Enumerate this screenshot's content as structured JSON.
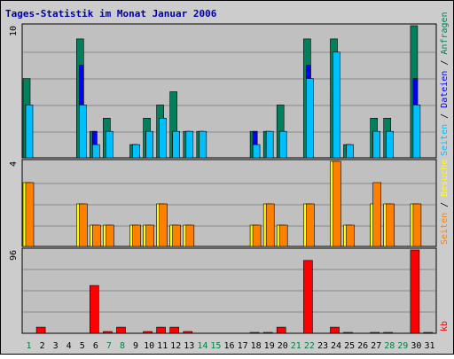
{
  "title": "Tages-Statistik im Monat Januar 2006",
  "colors": {
    "frame_bg": "#cccccc",
    "plot_bg": "#c0c0c0",
    "border": "#000000",
    "gridline": "#8a8a8a",
    "title": "#0000aa",
    "weekday_label": "#000000",
    "weekend_label": "#008040",
    "anfragen": "#00805c",
    "dateien": "#0000ff",
    "seiten_top": "#00bfff",
    "seiten_mid": "#ff8000",
    "besuche": "#ffff00",
    "kb": "#ff0000",
    "slash": "#000000"
  },
  "chart_data": [
    {
      "type": "bar",
      "panel": "requests",
      "ymax_label": "10",
      "ylim": [
        0,
        10
      ],
      "grid": true,
      "legend": [
        {
          "name": "Anfragen",
          "color": "#00805c"
        },
        {
          "name": "Dateien",
          "color": "#0000ff"
        },
        {
          "name": "Seiten",
          "color": "#00bfff"
        }
      ],
      "categories": [
        "1",
        "2",
        "3",
        "4",
        "5",
        "6",
        "7",
        "8",
        "9",
        "10",
        "11",
        "12",
        "13",
        "14",
        "15",
        "16",
        "17",
        "18",
        "19",
        "20",
        "21",
        "22",
        "23",
        "24",
        "25",
        "26",
        "27",
        "28",
        "29",
        "30",
        "31"
      ],
      "series": [
        {
          "name": "Anfragen",
          "color": "#00805c",
          "values": [
            6,
            0,
            0,
            0,
            9,
            2,
            3,
            0,
            1,
            3,
            4,
            5,
            2,
            2,
            0,
            0,
            0,
            2,
            2,
            4,
            0,
            9,
            0,
            9,
            1,
            0,
            3,
            3,
            0,
            10,
            0
          ]
        },
        {
          "name": "Dateien",
          "color": "#0000ff",
          "values": [
            4,
            0,
            0,
            0,
            7,
            2,
            2,
            0,
            1,
            2,
            3,
            2,
            2,
            2,
            0,
            0,
            0,
            2,
            2,
            2,
            0,
            7,
            0,
            5,
            1,
            0,
            2,
            2,
            0,
            6,
            0
          ]
        },
        {
          "name": "Seiten",
          "color": "#00bfff",
          "values": [
            4,
            0,
            0,
            0,
            4,
            1,
            2,
            0,
            1,
            2,
            3,
            2,
            2,
            2,
            0,
            0,
            0,
            1,
            2,
            2,
            0,
            6,
            0,
            8,
            1,
            0,
            2,
            2,
            0,
            4,
            0
          ]
        }
      ],
      "series_order_note_ignore": ""
    },
    {
      "type": "bar",
      "panel": "visits",
      "ymax_label": "4",
      "ylim": [
        0,
        4
      ],
      "grid": true,
      "legend": [
        {
          "name": "Besuche",
          "color": "#ffff00"
        },
        {
          "name": "Seiten",
          "color": "#ff8000"
        }
      ],
      "categories": [
        "1",
        "2",
        "3",
        "4",
        "5",
        "6",
        "7",
        "8",
        "9",
        "10",
        "11",
        "12",
        "13",
        "14",
        "15",
        "16",
        "17",
        "18",
        "19",
        "20",
        "21",
        "22",
        "23",
        "24",
        "25",
        "26",
        "27",
        "28",
        "29",
        "30",
        "31"
      ],
      "series": [
        {
          "name": "Besuche",
          "color": "#ffff00",
          "values": [
            3,
            0,
            0,
            0,
            2,
            1,
            1,
            0,
            1,
            1,
            2,
            1,
            1,
            0,
            0,
            0,
            0,
            1,
            2,
            1,
            0,
            2,
            0,
            4,
            1,
            0,
            2,
            2,
            0,
            2,
            0
          ]
        },
        {
          "name": "Seiten",
          "color": "#ff8000",
          "values": [
            3,
            0,
            0,
            0,
            2,
            1,
            1,
            0,
            1,
            1,
            2,
            1,
            1,
            0,
            0,
            0,
            0,
            1,
            2,
            1,
            0,
            2,
            0,
            4,
            1,
            0,
            3,
            2,
            0,
            2,
            0
          ]
        }
      ]
    },
    {
      "type": "bar",
      "panel": "kb",
      "ymax_label": "96",
      "ylim": [
        0,
        96
      ],
      "grid": true,
      "legend": [
        {
          "name": "kb",
          "color": "#ff0000"
        }
      ],
      "categories": [
        "1",
        "2",
        "3",
        "4",
        "5",
        "6",
        "7",
        "8",
        "9",
        "10",
        "11",
        "12",
        "13",
        "14",
        "15",
        "16",
        "17",
        "18",
        "19",
        "20",
        "21",
        "22",
        "23",
        "24",
        "25",
        "26",
        "27",
        "28",
        "29",
        "30",
        "31"
      ],
      "series": [
        {
          "name": "kb",
          "color": "#ff0000",
          "values": [
            0,
            7,
            0,
            0,
            0,
            55,
            2,
            7,
            0,
            2,
            7,
            7,
            2,
            0,
            0,
            0,
            0,
            1,
            1,
            7,
            0,
            84,
            0,
            7,
            1,
            0,
            1,
            1,
            0,
            96,
            1
          ]
        }
      ]
    }
  ],
  "x_labels": [
    {
      "label": "1",
      "weekend": true
    },
    {
      "label": "2",
      "weekend": false
    },
    {
      "label": "3",
      "weekend": false
    },
    {
      "label": "4",
      "weekend": false
    },
    {
      "label": "5",
      "weekend": false
    },
    {
      "label": "6",
      "weekend": false
    },
    {
      "label": "7",
      "weekend": true
    },
    {
      "label": "8",
      "weekend": true
    },
    {
      "label": "9",
      "weekend": false
    },
    {
      "label": "10",
      "weekend": false
    },
    {
      "label": "11",
      "weekend": false
    },
    {
      "label": "12",
      "weekend": false
    },
    {
      "label": "13",
      "weekend": false
    },
    {
      "label": "14",
      "weekend": true
    },
    {
      "label": "15",
      "weekend": true
    },
    {
      "label": "16",
      "weekend": false
    },
    {
      "label": "17",
      "weekend": false
    },
    {
      "label": "18",
      "weekend": false
    },
    {
      "label": "19",
      "weekend": false
    },
    {
      "label": "20",
      "weekend": false
    },
    {
      "label": "21",
      "weekend": true
    },
    {
      "label": "22",
      "weekend": true
    },
    {
      "label": "23",
      "weekend": false
    },
    {
      "label": "24",
      "weekend": false
    },
    {
      "label": "25",
      "weekend": false
    },
    {
      "label": "26",
      "weekend": false
    },
    {
      "label": "27",
      "weekend": false
    },
    {
      "label": "28",
      "weekend": true
    },
    {
      "label": "29",
      "weekend": true
    },
    {
      "label": "30",
      "weekend": false
    },
    {
      "label": "31",
      "weekend": false
    }
  ],
  "right_legends": {
    "top": [
      {
        "text": "Seiten",
        "color": "#00bfff"
      },
      {
        "text": " / ",
        "color": "#000000"
      },
      {
        "text": "Dateien",
        "color": "#0000ff"
      },
      {
        "text": " / ",
        "color": "#000000"
      },
      {
        "text": "Anfragen",
        "color": "#00805c"
      }
    ],
    "middle": [
      {
        "text": "Seiten",
        "color": "#ff8000"
      },
      {
        "text": " / ",
        "color": "#000000"
      },
      {
        "text": "Besuche",
        "color": "#ffff00"
      }
    ],
    "bottom": [
      {
        "text": "kb",
        "color": "#ff0000"
      }
    ]
  }
}
